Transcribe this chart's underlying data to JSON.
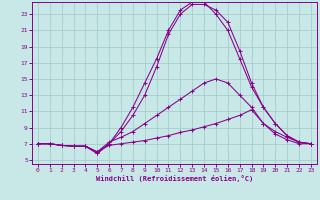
{
  "xlabel": "Windchill (Refroidissement éolien,°C)",
  "background_color": "#c8e8e8",
  "grid_color": "#a0c8c8",
  "line_color": "#880088",
  "xlim": [
    -0.5,
    23.5
  ],
  "ylim": [
    4.5,
    24.5
  ],
  "xticks": [
    0,
    1,
    2,
    3,
    4,
    5,
    6,
    7,
    8,
    9,
    10,
    11,
    12,
    13,
    14,
    15,
    16,
    17,
    18,
    19,
    20,
    21,
    22,
    23
  ],
  "yticks": [
    5,
    7,
    9,
    11,
    13,
    15,
    17,
    19,
    21,
    23
  ],
  "series1_x": [
    0,
    1,
    2,
    3,
    4,
    5,
    6,
    7,
    8,
    9,
    10,
    11,
    12,
    13,
    14,
    15,
    16,
    17,
    18,
    19,
    20,
    21,
    22,
    23
  ],
  "series1_y": [
    7.0,
    7.0,
    6.8,
    6.7,
    6.7,
    6.0,
    6.8,
    7.0,
    7.2,
    7.4,
    7.7,
    8.0,
    8.4,
    8.7,
    9.1,
    9.5,
    10.0,
    10.5,
    11.2,
    9.5,
    8.2,
    7.5,
    7.0,
    7.0
  ],
  "series2_x": [
    0,
    1,
    2,
    3,
    4,
    5,
    6,
    7,
    8,
    9,
    10,
    11,
    12,
    13,
    14,
    15,
    16,
    17,
    18,
    19,
    20,
    21,
    22,
    23
  ],
  "series2_y": [
    7.0,
    7.0,
    6.8,
    6.7,
    6.7,
    6.0,
    7.2,
    7.8,
    8.5,
    9.5,
    10.5,
    11.5,
    12.5,
    13.5,
    14.5,
    15.0,
    14.5,
    13.0,
    11.5,
    9.5,
    8.5,
    7.8,
    7.2,
    7.0
  ],
  "series3_x": [
    0,
    1,
    2,
    3,
    4,
    5,
    6,
    7,
    8,
    9,
    10,
    11,
    12,
    13,
    14,
    15,
    16,
    17,
    18,
    19,
    20,
    21,
    22,
    23
  ],
  "series3_y": [
    7.0,
    7.0,
    6.8,
    6.7,
    6.7,
    5.8,
    7.0,
    9.0,
    11.5,
    14.5,
    17.5,
    21.0,
    23.5,
    24.5,
    24.5,
    23.0,
    21.0,
    17.5,
    14.0,
    11.5,
    9.5,
    8.0,
    7.2,
    7.0
  ],
  "series4_x": [
    0,
    1,
    2,
    3,
    4,
    5,
    6,
    7,
    8,
    9,
    10,
    11,
    12,
    13,
    14,
    15,
    16,
    17,
    18,
    19,
    20,
    21,
    22,
    23
  ],
  "series4_y": [
    7.0,
    7.0,
    6.8,
    6.7,
    6.7,
    5.8,
    7.0,
    8.5,
    10.5,
    13.0,
    16.5,
    20.5,
    23.0,
    24.2,
    24.2,
    23.5,
    22.0,
    18.5,
    14.5,
    11.5,
    9.5,
    8.0,
    7.2,
    7.0
  ]
}
